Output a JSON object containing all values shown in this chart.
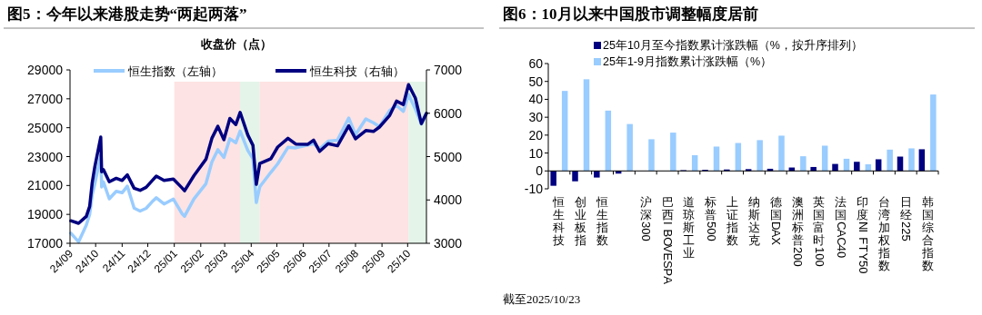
{
  "chart_data": [
    {
      "type": "line",
      "title": "图5：今年以来港股走势“两起两落”",
      "subtitle": "收盘价（点）",
      "x": [
        "2024-09-02",
        "2024-09-11",
        "2024-09-20",
        "2024-09-24",
        "2024-09-27",
        "2024-09-30",
        "2024-10-07",
        "2024-10-08",
        "2024-10-10",
        "2024-10-17",
        "2024-10-25",
        "2024-11-01",
        "2024-11-07",
        "2024-11-15",
        "2024-11-22",
        "2024-11-29",
        "2024-12-06",
        "2024-12-11",
        "2024-12-20",
        "2024-12-31",
        "2025-01-10",
        "2025-01-13",
        "2025-01-24",
        "2025-02-07",
        "2025-02-14",
        "2025-02-21",
        "2025-02-28",
        "2025-03-07",
        "2025-03-14",
        "2025-03-19",
        "2025-03-28",
        "2025-04-03",
        "2025-04-07",
        "2025-04-11",
        "2025-04-24",
        "2025-05-02",
        "2025-05-14",
        "2025-05-23",
        "2025-06-06",
        "2025-06-13",
        "2025-06-20",
        "2025-06-30",
        "2025-07-11",
        "2025-07-24",
        "2025-08-01",
        "2025-08-13",
        "2025-08-22",
        "2025-08-29",
        "2025-09-10",
        "2025-09-18",
        "2025-09-26",
        "2025-10-02",
        "2025-10-10",
        "2025-10-17",
        "2025-10-23"
      ],
      "series": [
        {
          "name": "恒生指数（左轴）",
          "color": "#99ccff",
          "values": [
            17700,
            17100,
            18250,
            19000,
            20350,
            21130,
            23100,
            20900,
            21250,
            20080,
            20600,
            20500,
            20950,
            19430,
            19230,
            19420,
            19870,
            20150,
            19720,
            20060,
            19060,
            18870,
            20070,
            21130,
            22620,
            23480,
            22940,
            24230,
            23960,
            24770,
            23430,
            22850,
            19830,
            20910,
            21910,
            22500,
            23640,
            23600,
            23790,
            23890,
            23530,
            24070,
            24140,
            25670,
            24510,
            25610,
            25340,
            25080,
            26200,
            26540,
            26130,
            27290,
            26290,
            25250,
            25970
          ]
        },
        {
          "name": "恒生科技（右轴）",
          "color": "#000080",
          "axis": "y2",
          "values": [
            3520,
            3460,
            3620,
            3850,
            4400,
            4770,
            5450,
            4650,
            4700,
            4420,
            4500,
            4450,
            4580,
            4270,
            4220,
            4290,
            4440,
            4550,
            4450,
            4480,
            4280,
            4210,
            4560,
            4940,
            5420,
            5700,
            5390,
            5880,
            5740,
            6020,
            5500,
            5260,
            4360,
            4840,
            4950,
            5220,
            5420,
            5290,
            5280,
            5380,
            5120,
            5300,
            5250,
            5710,
            5410,
            5600,
            5580,
            5680,
            5950,
            6280,
            6200,
            6660,
            6350,
            5760,
            6000
          ]
        }
      ],
      "xlim": [
        "2024-09-01",
        "2025-10-23"
      ],
      "xticks": [
        {
          "value": "2024-09",
          "label": "24/09"
        },
        {
          "value": "2024-10",
          "label": "24/10"
        },
        {
          "value": "2024-11",
          "label": "24/11"
        },
        {
          "value": "2024-12",
          "label": "24/12"
        },
        {
          "value": "2025-01",
          "label": "25/01"
        },
        {
          "value": "2025-02",
          "label": "25/02"
        },
        {
          "value": "2025-03",
          "label": "25/03"
        },
        {
          "value": "2025-04",
          "label": "25/04"
        },
        {
          "value": "2025-05",
          "label": "25/05"
        },
        {
          "value": "2025-06",
          "label": "25/06"
        },
        {
          "value": "2025-07",
          "label": "25/07"
        },
        {
          "value": "2025-08",
          "label": "25/08"
        },
        {
          "value": "2025-09",
          "label": "25/09"
        },
        {
          "value": "2025-10",
          "label": "25/10"
        }
      ],
      "ylim": [
        17000,
        29000
      ],
      "yticks": [
        17000,
        19000,
        21000,
        23000,
        25000,
        27000,
        29000
      ],
      "y2lim": [
        3000,
        7000
      ],
      "y2ticks": [
        3000,
        4000,
        5000,
        6000,
        7000
      ],
      "bands": [
        {
          "axis": "x",
          "from": "2025-01-01",
          "to": "2025-03-19",
          "color": "#fde3e3"
        },
        {
          "axis": "x",
          "from": "2025-03-19",
          "to": "2025-04-11",
          "color": "#e4f4e8"
        },
        {
          "axis": "x",
          "from": "2025-04-11",
          "to": "2025-10-02",
          "color": "#fde3e3"
        },
        {
          "axis": "x",
          "from": "2025-10-02",
          "to": "2025-10-23",
          "color": "#e4f4e8"
        }
      ],
      "legend": "top",
      "grid": false,
      "marker": "none",
      "line_style": "solid"
    },
    {
      "type": "bar",
      "title": "图6：10月以来中国股市调整幅度居前",
      "categories": [
        "恒生科技",
        "创业板指",
        "恒生指数",
        null,
        "沪深300",
        "巴西IBOVESPA",
        "道琼斯工业",
        "标普500",
        "上证指数",
        "纳斯达克",
        "德国DAX",
        "澳洲标普200",
        "英国富时100",
        "法国CAC40",
        "印度NIFTY50",
        "台湾加权指数",
        "日经225",
        "韩国综合指数"
      ],
      "series": [
        {
          "name": "25年10月至今指数累计涨跌幅（%，按升序排列）",
          "color": "#000080",
          "values": [
            -8.3,
            -5.8,
            -3.7,
            -1.5,
            null,
            null,
            0.4,
            0.6,
            0.8,
            1.0,
            1.2,
            1.9,
            2.2,
            3.9,
            5.1,
            6.5,
            8.0,
            12.1
          ]
        },
        {
          "name": "25年1-9月指数累计涨跌幅（%）",
          "color": "#99ccff",
          "values": [
            44.7,
            51.2,
            33.7,
            26.2,
            17.7,
            21.4,
            8.8,
            13.6,
            15.6,
            17.2,
            19.7,
            8.2,
            14.1,
            6.8,
            3.7,
            11.9,
            12.6,
            42.7
          ]
        }
      ],
      "ylim": [
        -10,
        60
      ],
      "yticks": [
        -10,
        0,
        10,
        20,
        30,
        40,
        50,
        60
      ],
      "annotations": [
        "截至2025/10/23"
      ],
      "legend": "top left",
      "grid": false
    }
  ]
}
